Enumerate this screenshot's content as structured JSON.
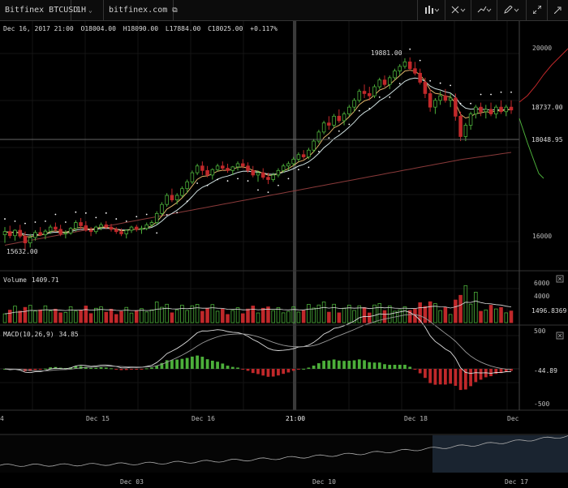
{
  "toolbar": {
    "symbol": "Bitfinex BTCUSD",
    "interval": "1H",
    "site": "bitfinex.com"
  },
  "ohlc": {
    "date": "Dec 16, 2017 21:00",
    "open": "O18004.00",
    "high": "H18090.00",
    "low": "L17884.00",
    "close": "C18025.00",
    "change": "+0.117%"
  },
  "price_pane": {
    "high_marker": "19881.00",
    "low_marker": "15632.00",
    "axis_labels": [
      "20000",
      "16000"
    ],
    "current_label": "18737.00",
    "crosshair_label": "18048.95"
  },
  "volume_pane": {
    "title": "Volume",
    "value": "1409.71",
    "axis_labels": [
      "6000",
      "4000"
    ],
    "current_label": "1496.8369"
  },
  "macd_pane": {
    "title": "MACD(10,26,9)",
    "value": "34.85",
    "axis_labels": [
      "500",
      "-500"
    ],
    "current_label": "-44.89"
  },
  "time_axis": {
    "labels": [
      "Dec 15",
      "Dec 16",
      "21:00",
      "Dec 18"
    ],
    "edge_left": "4",
    "edge_right": "Dec"
  },
  "navigator": {
    "labels": [
      "Dec 03",
      "Dec 10",
      "Dec 17"
    ]
  },
  "colors": {
    "up": "#4caf3a",
    "down": "#c0282a",
    "ema_fast": "#e0b36a",
    "ema_slow": "#cfe0e0",
    "sma_long": "#8a3a3a",
    "sar": "#ffffff",
    "navigator_highlight": "#1a2430"
  },
  "chart_data": {
    "type": "candlestick",
    "price_range": [
      15400,
      20200
    ],
    "candles_ohlc": [
      [
        15980,
        16150,
        15800,
        16050
      ],
      [
        16050,
        16180,
        15900,
        15960
      ],
      [
        15960,
        16100,
        15850,
        16080
      ],
      [
        16080,
        16200,
        15900,
        15950
      ],
      [
        15950,
        16050,
        15632,
        15800
      ],
      [
        15800,
        16000,
        15700,
        15920
      ],
      [
        15920,
        16080,
        15850,
        16030
      ],
      [
        16030,
        16150,
        15950,
        15980
      ],
      [
        15980,
        16100,
        15880,
        16060
      ],
      [
        16060,
        16200,
        16000,
        16150
      ],
      [
        16150,
        16250,
        16050,
        16100
      ],
      [
        16100,
        16200,
        15950,
        16000
      ],
      [
        16000,
        16080,
        15900,
        16020
      ],
      [
        16020,
        16150,
        15980,
        16120
      ],
      [
        16120,
        16300,
        16050,
        16250
      ],
      [
        16250,
        16350,
        16100,
        16180
      ],
      [
        16180,
        16280,
        16050,
        16080
      ],
      [
        16080,
        16150,
        15950,
        16050
      ],
      [
        16050,
        16180,
        16000,
        16150
      ],
      [
        16150,
        16250,
        16080,
        16200
      ],
      [
        16200,
        16280,
        16100,
        16150
      ],
      [
        16150,
        16220,
        16050,
        16100
      ],
      [
        16100,
        16150,
        16000,
        16050
      ],
      [
        16050,
        16120,
        15950,
        16000
      ],
      [
        16000,
        16100,
        15900,
        16080
      ],
      [
        16080,
        16180,
        16020,
        16150
      ],
      [
        16150,
        16200,
        16050,
        16100
      ],
      [
        16100,
        16180,
        16000,
        16120
      ],
      [
        16120,
        16250,
        16080,
        16200
      ],
      [
        16200,
        16300,
        16150,
        16250
      ],
      [
        16250,
        16500,
        16200,
        16450
      ],
      [
        16450,
        16700,
        16400,
        16650
      ],
      [
        16650,
        16900,
        16600,
        16850
      ],
      [
        16850,
        17000,
        16700,
        16750
      ],
      [
        16750,
        16900,
        16650,
        16850
      ],
      [
        16850,
        17050,
        16800,
        17000
      ],
      [
        17000,
        17200,
        16900,
        17150
      ],
      [
        17150,
        17400,
        17100,
        17350
      ],
      [
        17350,
        17550,
        17300,
        17500
      ],
      [
        17500,
        17600,
        17300,
        17400
      ],
      [
        17400,
        17500,
        17250,
        17300
      ],
      [
        17300,
        17450,
        17200,
        17420
      ],
      [
        17420,
        17550,
        17380,
        17500
      ],
      [
        17500,
        17600,
        17400,
        17450
      ],
      [
        17450,
        17550,
        17350,
        17400
      ],
      [
        17400,
        17500,
        17300,
        17480
      ],
      [
        17480,
        17600,
        17400,
        17550
      ],
      [
        17550,
        17650,
        17450,
        17500
      ],
      [
        17500,
        17580,
        17350,
        17400
      ],
      [
        17400,
        17500,
        17250,
        17300
      ],
      [
        17300,
        17400,
        17150,
        17350
      ],
      [
        17350,
        17450,
        17200,
        17250
      ],
      [
        17250,
        17350,
        17100,
        17200
      ],
      [
        17200,
        17350,
        17150,
        17300
      ],
      [
        17300,
        17450,
        17250,
        17400
      ],
      [
        17400,
        17550,
        17350,
        17500
      ],
      [
        17500,
        17600,
        17400,
        17550
      ],
      [
        17550,
        17700,
        17500,
        17650
      ],
      [
        17650,
        17800,
        17600,
        17750
      ],
      [
        17750,
        17850,
        17650,
        17700
      ],
      [
        17700,
        17900,
        17650,
        17850
      ],
      [
        17850,
        18100,
        17800,
        18050
      ],
      [
        18050,
        18300,
        18000,
        18250
      ],
      [
        18250,
        18500,
        18200,
        18450
      ],
      [
        18450,
        18600,
        18300,
        18400
      ],
      [
        18400,
        18650,
        18350,
        18600
      ],
      [
        18600,
        18750,
        18450,
        18500
      ],
      [
        18500,
        18700,
        18400,
        18650
      ],
      [
        18650,
        18850,
        18600,
        18800
      ],
      [
        18800,
        19000,
        18700,
        18950
      ],
      [
        18950,
        19200,
        18900,
        19150
      ],
      [
        19150,
        19300,
        19000,
        19100
      ],
      [
        19100,
        19250,
        18950,
        19050
      ],
      [
        19050,
        19300,
        19000,
        19250
      ],
      [
        19250,
        19450,
        19200,
        19400
      ],
      [
        19400,
        19500,
        19250,
        19300
      ],
      [
        19300,
        19500,
        19200,
        19450
      ],
      [
        19450,
        19650,
        19400,
        19600
      ],
      [
        19600,
        19750,
        19500,
        19700
      ],
      [
        19700,
        19881,
        19650,
        19800
      ],
      [
        19800,
        19900,
        19600,
        19650
      ],
      [
        19650,
        19800,
        19500,
        19550
      ],
      [
        19550,
        19650,
        19300,
        19350
      ],
      [
        19350,
        19450,
        19000,
        19100
      ],
      [
        19100,
        19200,
        18700,
        18800
      ],
      [
        18800,
        19000,
        18650,
        18950
      ],
      [
        18950,
        19150,
        18850,
        19050
      ],
      [
        19050,
        19200,
        18900,
        18950
      ],
      [
        18950,
        19100,
        18800,
        19000
      ],
      [
        19000,
        19100,
        18500,
        18600
      ],
      [
        18600,
        18700,
        18050,
        18150
      ],
      [
        18150,
        18450,
        18050,
        18400
      ],
      [
        18400,
        18700,
        18300,
        18650
      ],
      [
        18650,
        18850,
        18550,
        18800
      ],
      [
        18800,
        18900,
        18600,
        18700
      ],
      [
        18700,
        18850,
        18550,
        18750
      ],
      [
        18750,
        18900,
        18600,
        18650
      ],
      [
        18650,
        18850,
        18550,
        18800
      ],
      [
        18800,
        18950,
        18650,
        18700
      ],
      [
        18700,
        18850,
        18600,
        18800
      ],
      [
        18800,
        18950,
        18650,
        18737
      ]
    ],
    "volume_range": [
      0,
      7000
    ],
    "macd_range": [
      -600,
      600
    ]
  }
}
